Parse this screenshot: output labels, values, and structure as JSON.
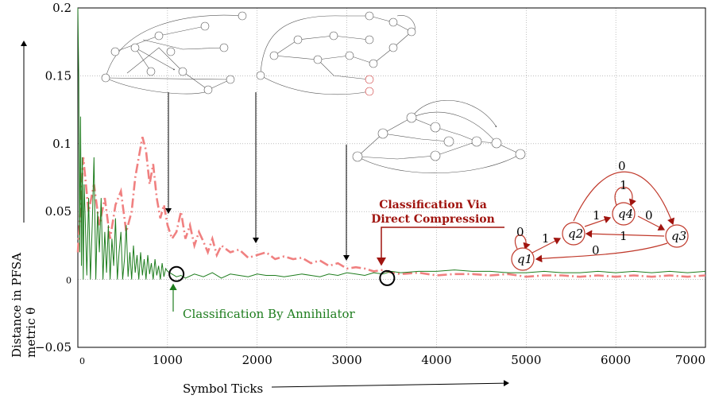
{
  "chart_data": {
    "type": "line",
    "title": "",
    "xlabel": "Symbol Ticks",
    "ylabel_line1": "Distance in PFSA",
    "ylabel_line2": "metric θ",
    "xlim": [
      0,
      7000
    ],
    "ylim": [
      -0.05,
      0.2
    ],
    "xticks": [
      0,
      1000,
      2000,
      3000,
      4000,
      5000,
      6000,
      7000
    ],
    "xtick_labels": [
      "0",
      "1000",
      "2000",
      "3000",
      "4000",
      "5000",
      "6000",
      "7000"
    ],
    "yticks": [
      -0.05,
      0,
      0.05,
      0.1,
      0.15,
      0.2
    ],
    "ytick_labels": [
      "−0.05",
      "0",
      "0.05",
      "0.1",
      "0.15",
      "0.2"
    ],
    "grid": true,
    "series": [
      {
        "name": "Classification By Annihilator",
        "color": "#1e7d1e",
        "style": "solid",
        "x": [
          0,
          10,
          20,
          30,
          40,
          50,
          60,
          70,
          80,
          100,
          120,
          140,
          160,
          180,
          200,
          220,
          240,
          260,
          280,
          300,
          320,
          340,
          360,
          380,
          400,
          420,
          440,
          460,
          480,
          500,
          520,
          540,
          560,
          580,
          600,
          620,
          640,
          660,
          680,
          700,
          720,
          740,
          760,
          780,
          800,
          820,
          840,
          860,
          880,
          900,
          920,
          940,
          960,
          980,
          1000,
          1050,
          1100,
          1150,
          1200,
          1300,
          1400,
          1500,
          1600,
          1700,
          1800,
          1900,
          2000,
          2100,
          2200,
          2300,
          2400,
          2500,
          2600,
          2700,
          2800,
          2900,
          3000,
          3100,
          3200,
          3300,
          3400,
          3500,
          3600,
          3800,
          4000,
          4200,
          4400,
          4600,
          4800,
          5000,
          5200,
          5400,
          5600,
          5800,
          6000,
          6200,
          6400,
          6600,
          6800,
          7000
        ],
        "y": [
          0.2,
          0.15,
          0.02,
          0.12,
          0.01,
          0.09,
          0.0,
          0.07,
          0.05,
          0.003,
          0.06,
          0.0,
          0.04,
          0.09,
          0.0,
          0.05,
          0.02,
          0.06,
          0.0,
          0.035,
          0.005,
          0.04,
          0.0,
          0.03,
          0.01,
          0.045,
          0.0,
          0.02,
          0.035,
          0.0,
          0.015,
          0.04,
          0.002,
          0.02,
          0.0,
          0.025,
          0.005,
          0.018,
          0.0,
          0.02,
          0.003,
          0.015,
          0.0,
          0.018,
          0.004,
          0.012,
          0.0,
          0.015,
          0.003,
          0.01,
          0.0,
          0.012,
          0.002,
          0.008,
          0.006,
          0.004,
          0.002,
          0.003,
          0.001,
          0.004,
          0.002,
          0.005,
          0.001,
          0.004,
          0.003,
          0.002,
          0.004,
          0.003,
          0.003,
          0.002,
          0.003,
          0.004,
          0.003,
          0.002,
          0.004,
          0.003,
          0.005,
          0.004,
          0.003,
          0.005,
          0.004,
          0.006,
          0.005,
          0.006,
          0.006,
          0.007,
          0.006,
          0.006,
          0.005,
          0.005,
          0.006,
          0.005,
          0.005,
          0.006,
          0.005,
          0.006,
          0.005,
          0.006,
          0.005,
          0.006
        ]
      },
      {
        "name": "Classification Via Direct Compression",
        "color": "#f08080",
        "style": "dashdot",
        "x": [
          0,
          60,
          120,
          180,
          240,
          300,
          360,
          420,
          480,
          540,
          600,
          640,
          680,
          720,
          760,
          800,
          840,
          880,
          920,
          960,
          1000,
          1050,
          1100,
          1150,
          1200,
          1250,
          1300,
          1350,
          1400,
          1450,
          1500,
          1550,
          1600,
          1700,
          1800,
          1900,
          2000,
          2100,
          2200,
          2300,
          2400,
          2500,
          2600,
          2700,
          2800,
          2900,
          3000,
          3100,
          3200,
          3300,
          3400,
          3500,
          3600,
          3800,
          4000,
          4200,
          4400,
          4600,
          4800,
          5000,
          5200,
          5400,
          5600,
          5800,
          6000,
          6200,
          6400,
          6600,
          6800,
          7000
        ],
        "y": [
          0.02,
          0.09,
          0.05,
          0.07,
          0.04,
          0.06,
          0.03,
          0.055,
          0.065,
          0.035,
          0.05,
          0.075,
          0.09,
          0.105,
          0.095,
          0.07,
          0.085,
          0.06,
          0.045,
          0.055,
          0.04,
          0.03,
          0.035,
          0.05,
          0.03,
          0.04,
          0.025,
          0.035,
          0.028,
          0.02,
          0.03,
          0.018,
          0.025,
          0.02,
          0.022,
          0.016,
          0.018,
          0.02,
          0.015,
          0.017,
          0.015,
          0.016,
          0.012,
          0.014,
          0.01,
          0.012,
          0.008,
          0.009,
          0.008,
          0.006,
          0.007,
          0.005,
          0.004,
          0.005,
          0.003,
          0.004,
          0.004,
          0.003,
          0.004,
          0.002,
          0.003,
          0.003,
          0.002,
          0.003,
          0.002,
          0.003,
          0.002,
          0.003,
          0.002,
          0.003
        ]
      }
    ],
    "annotations": {
      "red_line1": "Classification Via",
      "red_line2": "Direct Compression",
      "green": "Classification By Annihilator"
    },
    "markers": [
      {
        "name": "annihilator-point",
        "x": 1100,
        "y": 0.004
      },
      {
        "name": "compression-point",
        "x": 3450,
        "y": 0.001
      }
    ],
    "pfsa": {
      "states": [
        "q1",
        "q2",
        "q3",
        "q4"
      ],
      "edge_labels": [
        "0",
        "1",
        "1",
        "1",
        "0",
        "1",
        "0",
        "0"
      ]
    }
  }
}
